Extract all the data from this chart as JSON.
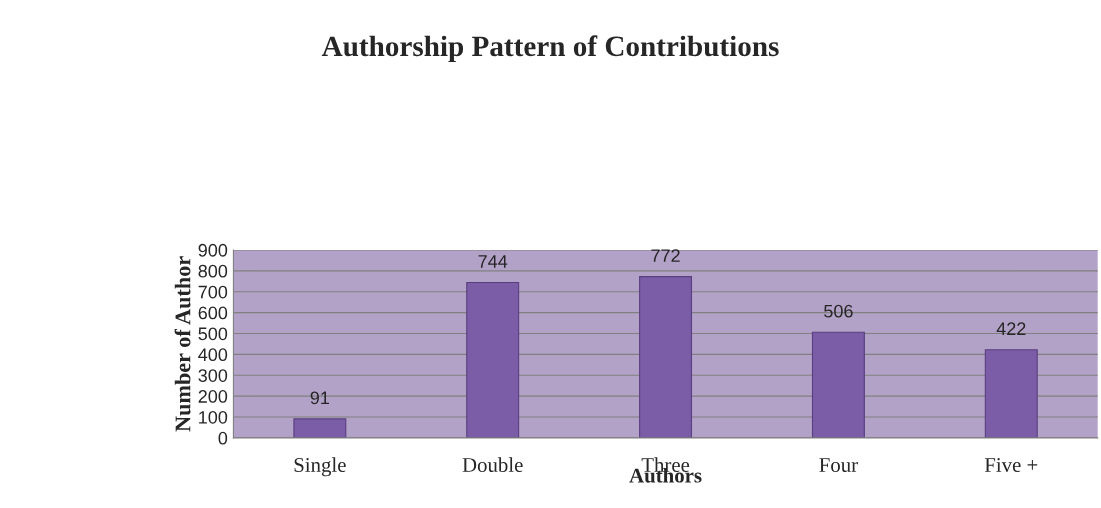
{
  "chart_data": {
    "type": "bar",
    "title": "Authorship Pattern of Contributions",
    "xlabel": "Authors",
    "ylabel": "Number of Author",
    "categories": [
      "Single",
      "Double",
      "Three",
      "Four",
      "Five +"
    ],
    "values": [
      91,
      744,
      772,
      506,
      422
    ],
    "color": "#7b5ca6",
    "ylim": [
      0,
      900
    ],
    "yticks": [
      0,
      100,
      200,
      300,
      400,
      500,
      600,
      700,
      800,
      900
    ],
    "grid": "y",
    "data_labels": true
  }
}
